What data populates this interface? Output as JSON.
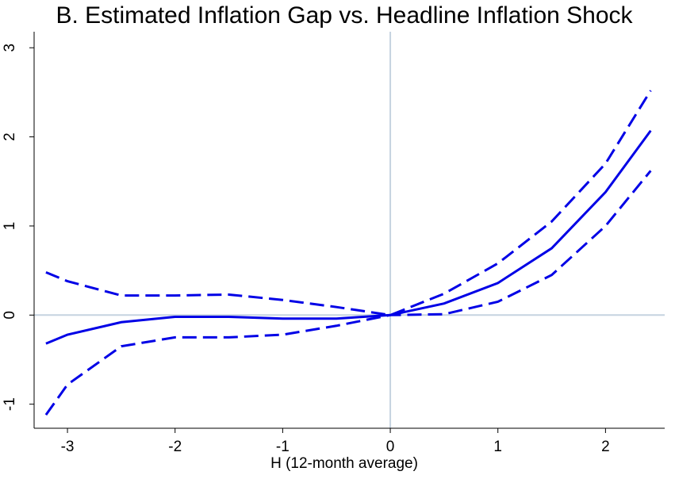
{
  "chart_data": {
    "type": "line",
    "title": "B. Estimated Inflation Gap vs. Headline Inflation Shock",
    "xlabel": "H (12-month average)",
    "x": [
      -3.2,
      -3,
      -2.5,
      -2,
      -1.5,
      -1,
      -0.5,
      0,
      0.5,
      1,
      1.5,
      2,
      2.42
    ],
    "series": [
      {
        "color": "#0000e6",
        "dash": "dashed",
        "values": [
          0.48,
          0.38,
          0.22,
          0.22,
          0.23,
          0.17,
          0.09,
          0,
          0.24,
          0.58,
          1.05,
          1.7,
          2.52
        ]
      },
      {
        "color": "#0000e6",
        "dash": "solid",
        "values": [
          -0.32,
          -0.22,
          -0.08,
          -0.02,
          -0.02,
          -0.04,
          -0.04,
          0,
          0.13,
          0.36,
          0.75,
          1.38,
          2.07
        ]
      },
      {
        "color": "#0000e6",
        "dash": "dashed",
        "values": [
          -1.12,
          -0.78,
          -0.35,
          -0.25,
          -0.25,
          -0.22,
          -0.12,
          0,
          0.01,
          0.15,
          0.45,
          1.0,
          1.62
        ]
      }
    ],
    "xlim": [
      -3.31,
      2.55
    ],
    "ylim": [
      -1.27,
      3.18
    ],
    "xticks": [
      -3,
      -2,
      -1,
      0,
      1,
      2
    ],
    "yticks": [
      -1,
      0,
      1,
      2,
      3
    ],
    "hlines": [
      0
    ],
    "vlines": [
      0
    ],
    "refline_color": "#c6d3e0"
  }
}
